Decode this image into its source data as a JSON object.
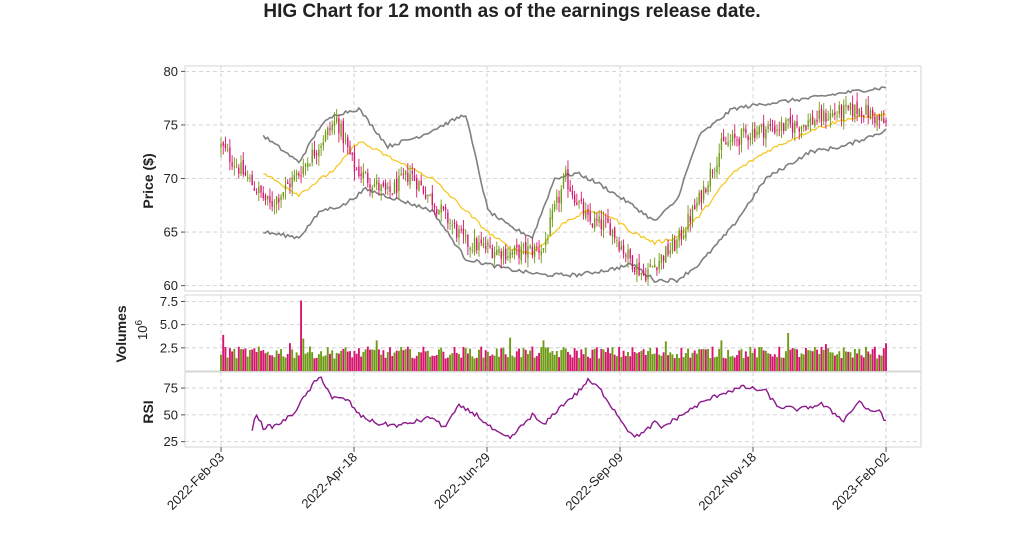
{
  "chart_data": {
    "type": "candlestick",
    "title": "HIG Chart for 12 month as of the earnings release date.",
    "x_tick_labels": [
      "2022-Feb-03",
      "2022-Apr-18",
      "2022-Jun-29",
      "2022-Sep-09",
      "2022-Nov-18",
      "2023-Feb-02"
    ],
    "colors": {
      "up": "#6e9a15",
      "down": "#d6166e",
      "sma": "#f5c518",
      "bands": "#808080",
      "rsi": "#8b1a8b"
    },
    "price_panel": {
      "ylabel": "Price ($)",
      "ylim": [
        59.5,
        80.5
      ],
      "ticks": [
        60,
        65,
        70,
        75,
        80
      ],
      "close_anchors": [
        [
          0,
          73
        ],
        [
          10,
          70.5
        ],
        [
          22,
          67.5
        ],
        [
          35,
          70.5
        ],
        [
          52,
          75.5
        ],
        [
          60,
          71
        ],
        [
          75,
          68.5
        ],
        [
          85,
          70.5
        ],
        [
          95,
          68
        ],
        [
          110,
          64
        ],
        [
          130,
          63
        ],
        [
          145,
          63.5
        ],
        [
          150,
          67
        ],
        [
          155,
          70
        ],
        [
          165,
          66
        ],
        [
          175,
          65.5
        ],
        [
          182,
          63
        ],
        [
          190,
          61
        ],
        [
          205,
          64
        ],
        [
          215,
          68
        ],
        [
          225,
          73
        ],
        [
          240,
          74.5
        ],
        [
          260,
          75
        ],
        [
          275,
          76
        ],
        [
          288,
          76.5
        ],
        [
          299,
          75
        ]
      ],
      "bb_mid_anchors": [
        [
          19,
          70.5
        ],
        [
          35,
          68.5
        ],
        [
          52,
          71
        ],
        [
          62,
          73.5
        ],
        [
          80,
          71.5
        ],
        [
          95,
          70
        ],
        [
          110,
          67
        ],
        [
          120,
          65
        ],
        [
          130,
          63.5
        ],
        [
          140,
          63
        ],
        [
          155,
          66
        ],
        [
          165,
          67
        ],
        [
          175,
          66.5
        ],
        [
          185,
          65
        ],
        [
          195,
          64
        ],
        [
          205,
          64.5
        ],
        [
          215,
          66.5
        ],
        [
          230,
          70.5
        ],
        [
          245,
          72.5
        ],
        [
          265,
          74.5
        ],
        [
          280,
          75.5
        ],
        [
          299,
          76
        ]
      ],
      "bb_upper_anchors": [
        [
          19,
          74
        ],
        [
          35,
          71.5
        ],
        [
          45,
          75
        ],
        [
          52,
          76
        ],
        [
          62,
          76.5
        ],
        [
          75,
          73
        ],
        [
          90,
          74
        ],
        [
          110,
          76
        ],
        [
          120,
          67
        ],
        [
          130,
          65.5
        ],
        [
          140,
          64.5
        ],
        [
          150,
          70
        ],
        [
          160,
          70.5
        ],
        [
          170,
          69.5
        ],
        [
          185,
          67.5
        ],
        [
          195,
          66
        ],
        [
          205,
          68
        ],
        [
          215,
          74
        ],
        [
          230,
          76.5
        ],
        [
          245,
          77
        ],
        [
          265,
          77.5
        ],
        [
          280,
          78
        ],
        [
          299,
          78.5
        ]
      ],
      "bb_lower_anchors": [
        [
          19,
          65
        ],
        [
          35,
          64.5
        ],
        [
          45,
          67
        ],
        [
          55,
          67.5
        ],
        [
          65,
          69
        ],
        [
          80,
          68
        ],
        [
          95,
          67
        ],
        [
          110,
          62.5
        ],
        [
          130,
          61.5
        ],
        [
          145,
          61
        ],
        [
          160,
          61
        ],
        [
          175,
          61.5
        ],
        [
          185,
          62
        ],
        [
          195,
          60.5
        ],
        [
          205,
          60.5
        ],
        [
          215,
          62
        ],
        [
          230,
          65.5
        ],
        [
          245,
          70
        ],
        [
          265,
          72.5
        ],
        [
          280,
          73
        ],
        [
          299,
          74.5
        ]
      ]
    },
    "volume_panel": {
      "ylabel": "Volumes",
      "multiplier_label": "10^6",
      "ylim": [
        0,
        8.2
      ],
      "ticks": [
        2.5,
        5.0,
        7.5
      ],
      "tick_labels": [
        "2.5",
        "5.0",
        "7.5"
      ],
      "base_level": 1.8,
      "spikes": [
        [
          1,
          3.9
        ],
        [
          31,
          3.0
        ],
        [
          36,
          7.6
        ],
        [
          37,
          3.5
        ],
        [
          70,
          3.3
        ],
        [
          130,
          3.6
        ],
        [
          145,
          3.3
        ],
        [
          200,
          3.2
        ],
        [
          225,
          3.3
        ],
        [
          255,
          4.1
        ],
        [
          272,
          2.9
        ],
        [
          299,
          3.0
        ]
      ]
    },
    "rsi_panel": {
      "ylabel": "RSI",
      "ylim": [
        20,
        90
      ],
      "ticks": [
        25,
        50,
        75
      ],
      "anchors": [
        [
          14,
          37
        ],
        [
          16,
          51
        ],
        [
          19,
          38
        ],
        [
          25,
          40
        ],
        [
          32,
          50
        ],
        [
          36,
          62
        ],
        [
          42,
          80
        ],
        [
          45,
          85
        ],
        [
          50,
          66
        ],
        [
          57,
          64
        ],
        [
          62,
          50
        ],
        [
          70,
          42
        ],
        [
          80,
          40
        ],
        [
          90,
          45
        ],
        [
          95,
          48
        ],
        [
          100,
          38
        ],
        [
          107,
          58
        ],
        [
          115,
          50
        ],
        [
          120,
          40
        ],
        [
          125,
          32
        ],
        [
          130,
          28
        ],
        [
          140,
          50
        ],
        [
          145,
          40
        ],
        [
          150,
          52
        ],
        [
          155,
          62
        ],
        [
          160,
          70
        ],
        [
          165,
          82
        ],
        [
          170,
          75
        ],
        [
          175,
          60
        ],
        [
          180,
          45
        ],
        [
          185,
          30
        ],
        [
          190,
          33
        ],
        [
          195,
          43
        ],
        [
          198,
          38
        ],
        [
          205,
          47
        ],
        [
          215,
          60
        ],
        [
          225,
          70
        ],
        [
          235,
          76
        ],
        [
          245,
          72
        ],
        [
          250,
          58
        ],
        [
          260,
          55
        ],
        [
          270,
          60
        ],
        [
          280,
          45
        ],
        [
          287,
          63
        ],
        [
          292,
          52
        ],
        [
          296,
          55
        ],
        [
          299,
          43
        ]
      ]
    },
    "n_days": 300
  }
}
